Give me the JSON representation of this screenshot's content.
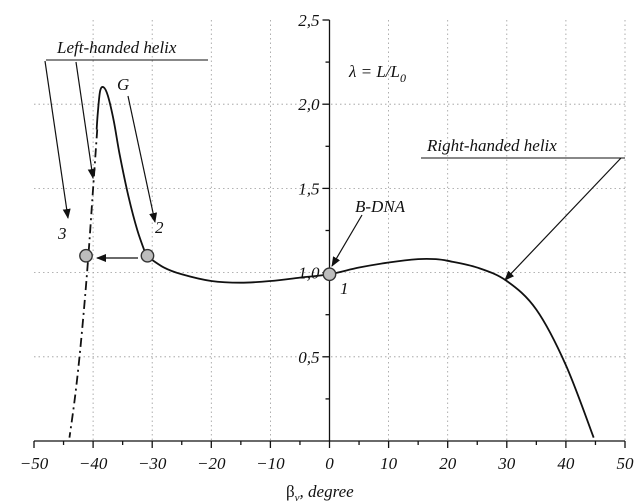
{
  "chart_data": {
    "type": "line",
    "xlabel_symbol": "β",
    "xlabel_sub": "v",
    "xlabel_text": ", degree",
    "xlim": [
      -50,
      50
    ],
    "ylim": [
      0,
      2.5
    ],
    "x_ticks": [
      -50,
      -40,
      -30,
      -20,
      -10,
      0,
      10,
      20,
      30,
      40,
      50
    ],
    "x_tick_labels": [
      "−50",
      "−40",
      "−30",
      "−20",
      "−10",
      "0",
      "10",
      "20",
      "30",
      "40",
      "50"
    ],
    "y_ticks": [
      0.5,
      1.0,
      1.5,
      2.0,
      2.5
    ],
    "y_tick_labels": [
      "0,5",
      "1,0",
      "1,5",
      "2,0",
      "2,5"
    ],
    "grid": true,
    "formula": {
      "main": "λ = L/L",
      "sub": "0"
    },
    "series": [
      {
        "style": "solid",
        "x": [
          -31.0,
          -32.5,
          -34.0,
          -35.5,
          -36.5,
          -37.5,
          -38.2,
          -38.8,
          -39.2,
          -39.4
        ],
        "y": [
          1.1,
          1.25,
          1.45,
          1.7,
          1.9,
          2.05,
          2.1,
          2.08,
          1.95,
          1.85
        ]
      },
      {
        "style": "solid",
        "x": [
          -31.0,
          -28.0,
          -25.0,
          -20.0,
          -15.0,
          -10.0,
          -5.0,
          0.0,
          5.0,
          10.0,
          15.0,
          18.0,
          20.0,
          25.0,
          30.0,
          35.0,
          40.0,
          44.7
        ],
        "y": [
          1.1,
          1.03,
          0.99,
          0.95,
          0.94,
          0.95,
          0.97,
          0.99,
          1.03,
          1.06,
          1.08,
          1.08,
          1.07,
          1.03,
          0.95,
          0.78,
          0.45,
          0.02
        ]
      },
      {
        "style": "dash-dot",
        "x": [
          -39.3,
          -40.0,
          -40.8,
          -41.5,
          -42.3,
          -43.1,
          -44.0
        ],
        "y": [
          1.85,
          1.5,
          1.1,
          0.8,
          0.5,
          0.25,
          0.02
        ]
      }
    ],
    "points": [
      {
        "label": "1",
        "x": 0.0,
        "y": 0.99
      },
      {
        "label": "2",
        "x": -30.8,
        "y": 1.1
      },
      {
        "label": "3",
        "x": -41.2,
        "y": 1.1
      }
    ],
    "annotations": {
      "left_helix": "Left-handed helix",
      "right_helix": "Right-handed helix",
      "g_label": "G",
      "bdna_label": "B-DNA",
      "point_1": "1",
      "point_2": "2",
      "point_3": "3"
    }
  }
}
